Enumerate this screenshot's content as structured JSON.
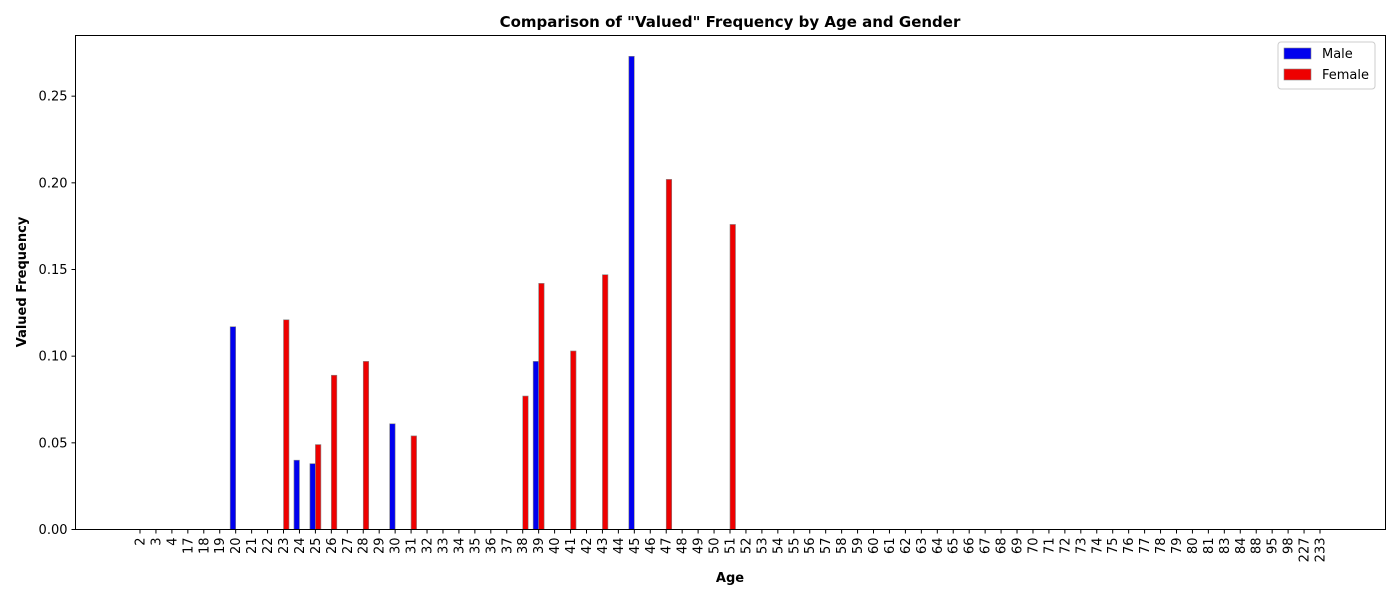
{
  "chart_data": {
    "type": "bar",
    "title": "Comparison of \"Valued\" Frequency by Age and Gender",
    "xlabel": "Age",
    "ylabel": "Valued Frequency",
    "ylim": [
      0,
      0.285
    ],
    "yticks": [
      "0.00",
      "0.05",
      "0.10",
      "0.15",
      "0.20",
      "0.25"
    ],
    "categories": [
      "2",
      "3",
      "4",
      "17",
      "18",
      "19",
      "20",
      "21",
      "22",
      "23",
      "24",
      "25",
      "26",
      "27",
      "28",
      "29",
      "30",
      "31",
      "32",
      "33",
      "34",
      "35",
      "36",
      "37",
      "38",
      "39",
      "40",
      "41",
      "42",
      "43",
      "44",
      "45",
      "46",
      "47",
      "48",
      "49",
      "50",
      "51",
      "52",
      "53",
      "54",
      "55",
      "56",
      "57",
      "58",
      "59",
      "60",
      "61",
      "62",
      "63",
      "64",
      "65",
      "66",
      "67",
      "68",
      "69",
      "70",
      "71",
      "72",
      "73",
      "74",
      "75",
      "76",
      "77",
      "78",
      "79",
      "80",
      "81",
      "83",
      "84",
      "88",
      "95",
      "98",
      "227",
      "233"
    ],
    "series": [
      {
        "name": "Male",
        "color": "#0000ee",
        "values": [
          0,
          0,
          0,
          0,
          0,
          0,
          0.117,
          0,
          0,
          0,
          0.04,
          0.038,
          0,
          0,
          0,
          0,
          0.061,
          0,
          0,
          0,
          0,
          0,
          0,
          0,
          0,
          0.097,
          0,
          0,
          0,
          0,
          0,
          0.273,
          0,
          0,
          0,
          0,
          0,
          0,
          0,
          0,
          0,
          0,
          0,
          0,
          0,
          0,
          0,
          0,
          0,
          0,
          0,
          0,
          0,
          0,
          0,
          0,
          0,
          0,
          0,
          0,
          0,
          0,
          0,
          0,
          0,
          0,
          0,
          0,
          0,
          0,
          0,
          0,
          0,
          0,
          0
        ]
      },
      {
        "name": "Female",
        "color": "#ee0000",
        "values": [
          0,
          0,
          0,
          0,
          0,
          0,
          0,
          0,
          0,
          0.121,
          0,
          0.049,
          0.089,
          0,
          0.097,
          0,
          0,
          0.054,
          0,
          0,
          0,
          0,
          0,
          0,
          0.077,
          0.142,
          0,
          0.103,
          0,
          0.147,
          0,
          0,
          0,
          0.202,
          0,
          0,
          0,
          0.176,
          0,
          0,
          0,
          0,
          0,
          0,
          0,
          0,
          0,
          0,
          0,
          0,
          0,
          0,
          0,
          0,
          0,
          0,
          0,
          0,
          0,
          0,
          0,
          0,
          0,
          0,
          0,
          0,
          0,
          0,
          0,
          0,
          0,
          0,
          0,
          0,
          0
        ]
      }
    ],
    "legend": "top-right",
    "grid": false
  }
}
